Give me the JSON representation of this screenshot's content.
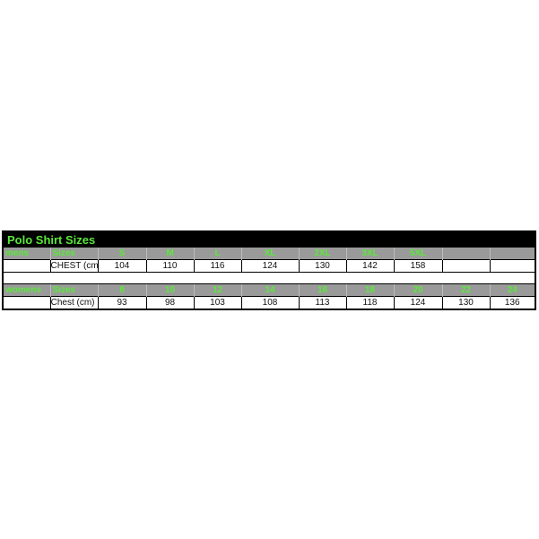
{
  "title": "Polo Shirt Sizes",
  "mens": {
    "headers": [
      "mens",
      "Sizes",
      "S",
      "M",
      "L",
      "XL",
      "2XL",
      "3XL",
      "5XL",
      "",
      ""
    ],
    "values": [
      "",
      "CHEST (cm)",
      "104",
      "110",
      "116",
      "124",
      "130",
      "142",
      "158",
      "",
      ""
    ]
  },
  "womens": {
    "headers": [
      "womens",
      "Sizes",
      "8",
      "10",
      "12",
      "14",
      "16",
      "18",
      "20",
      "22",
      "24"
    ],
    "values": [
      "",
      "Chest (cm)",
      "93",
      "98",
      "103",
      "108",
      "113",
      "118",
      "124",
      "130",
      "136"
    ]
  },
  "colors": {
    "header_text": "#5be83a",
    "header_bg": "#9a9a9a",
    "title_bg": "#000000"
  }
}
